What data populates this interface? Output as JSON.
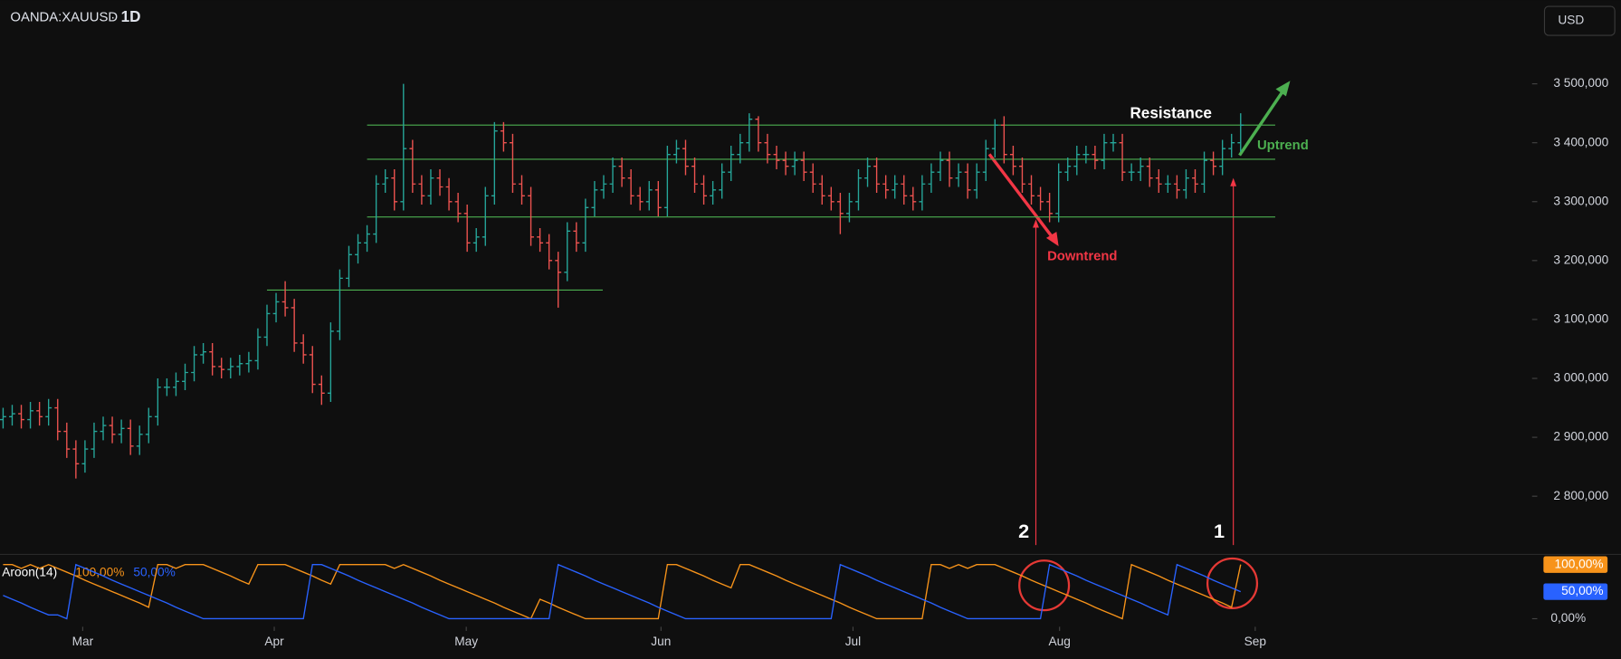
{
  "chart_data": [
    {
      "type": "ohlc",
      "symbol": "OANDA:XAUUSD",
      "interval": "1D",
      "currency": "USD",
      "up_color": "#26a69a",
      "down_color": "#ef5350",
      "grid": false,
      "xlim": [
        -0.34,
        167.8
      ],
      "xticks": [
        {
          "value": 8.75,
          "label": "Mar"
        },
        {
          "value": 29.8,
          "label": "Apr"
        },
        {
          "value": 50.9,
          "label": "May"
        },
        {
          "value": 72.3,
          "label": "Jun"
        },
        {
          "value": 93.4,
          "label": "Jul"
        },
        {
          "value": 116.1,
          "label": "Aug"
        },
        {
          "value": 137.6,
          "label": "Sep"
        }
      ],
      "ylim": [
        2703,
        3642
      ],
      "yticks": [
        {
          "value": 2800,
          "label": "2 800,000"
        },
        {
          "value": 2900,
          "label": "2 900,000"
        },
        {
          "value": 3000,
          "label": "3 000,000"
        },
        {
          "value": 3100,
          "label": "3 100,000"
        },
        {
          "value": 3200,
          "label": "3 200,000"
        },
        {
          "value": 3300,
          "label": "3 300,000"
        },
        {
          "value": 3400,
          "label": "3 400,000"
        },
        {
          "value": 3500,
          "label": "3 500,000"
        }
      ],
      "open": [
        2930,
        2935,
        2940,
        2930,
        2945,
        2935,
        2950,
        2910,
        2880,
        2855,
        2880,
        2910,
        2920,
        2905,
        2915,
        2885,
        2905,
        2935,
        2985,
        2985,
        2995,
        3010,
        3040,
        3045,
        3020,
        3015,
        3020,
        3025,
        3030,
        3070,
        3110,
        3130,
        3120,
        3060,
        3040,
        2990,
        2975,
        3080,
        3170,
        3210,
        3230,
        3245,
        3330,
        3340,
        3300,
        3390,
        3330,
        3310,
        3340,
        3325,
        3300,
        3280,
        3230,
        3240,
        3310,
        3420,
        3400,
        3330,
        3310,
        3240,
        3230,
        3200,
        3180,
        3250,
        3230,
        3290,
        3320,
        3330,
        3360,
        3340,
        3310,
        3300,
        3320,
        3290,
        3380,
        3390,
        3360,
        3330,
        3310,
        3320,
        3350,
        3380,
        3400,
        3440,
        3400,
        3380,
        3370,
        3360,
        3370,
        3350,
        3330,
        3310,
        3300,
        3280,
        3300,
        3340,
        3360,
        3330,
        3320,
        3330,
        3310,
        3300,
        3330,
        3350,
        3370,
        3340,
        3350,
        3320,
        3350,
        3390,
        3430,
        3380,
        3360,
        3330,
        3310,
        3300,
        3280,
        3350,
        3360,
        3380,
        3380,
        3370,
        3400,
        3400,
        3350,
        3350,
        3360,
        3340,
        3330,
        3330,
        3320,
        3340,
        3330,
        3370,
        3360,
        3390,
        3400
      ],
      "high": [
        2950,
        2955,
        2955,
        2960,
        2960,
        2965,
        2965,
        2925,
        2895,
        2895,
        2925,
        2935,
        2935,
        2930,
        2930,
        2920,
        2950,
        3000,
        3000,
        3010,
        3025,
        3055,
        3060,
        3060,
        3035,
        3035,
        3040,
        3045,
        3085,
        3125,
        3145,
        3165,
        3135,
        3075,
        3055,
        3005,
        3095,
        3185,
        3225,
        3245,
        3260,
        3345,
        3355,
        3355,
        3500,
        3405,
        3345,
        3355,
        3355,
        3340,
        3315,
        3295,
        3255,
        3325,
        3435,
        3435,
        3415,
        3345,
        3325,
        3255,
        3245,
        3215,
        3265,
        3265,
        3305,
        3335,
        3345,
        3375,
        3375,
        3355,
        3325,
        3335,
        3335,
        3395,
        3405,
        3405,
        3375,
        3345,
        3335,
        3365,
        3395,
        3415,
        3450,
        3445,
        3415,
        3395,
        3385,
        3385,
        3385,
        3365,
        3345,
        3325,
        3315,
        3315,
        3355,
        3375,
        3375,
        3345,
        3345,
        3345,
        3325,
        3345,
        3365,
        3385,
        3385,
        3365,
        3365,
        3365,
        3405,
        3440,
        3445,
        3395,
        3375,
        3345,
        3325,
        3315,
        3365,
        3375,
        3395,
        3395,
        3395,
        3415,
        3415,
        3415,
        3365,
        3375,
        3375,
        3355,
        3345,
        3345,
        3355,
        3355,
        3385,
        3385,
        3405,
        3415,
        3450
      ],
      "low": [
        2915,
        2920,
        2915,
        2915,
        2920,
        2920,
        2895,
        2865,
        2830,
        2840,
        2865,
        2895,
        2890,
        2890,
        2870,
        2870,
        2890,
        2920,
        2970,
        2970,
        2980,
        2995,
        3025,
        3005,
        3000,
        3000,
        3005,
        3010,
        3015,
        3055,
        3095,
        3105,
        3045,
        3025,
        2975,
        2955,
        2960,
        3065,
        3155,
        3195,
        3215,
        3230,
        3315,
        3285,
        3285,
        3315,
        3295,
        3295,
        3310,
        3285,
        3265,
        3215,
        3215,
        3225,
        3295,
        3385,
        3315,
        3295,
        3225,
        3215,
        3185,
        3120,
        3165,
        3215,
        3215,
        3275,
        3305,
        3315,
        3325,
        3295,
        3285,
        3285,
        3275,
        3275,
        3365,
        3345,
        3315,
        3295,
        3295,
        3305,
        3335,
        3365,
        3385,
        3385,
        3365,
        3355,
        3345,
        3345,
        3335,
        3315,
        3295,
        3285,
        3245,
        3265,
        3285,
        3325,
        3315,
        3305,
        3305,
        3295,
        3285,
        3285,
        3315,
        3335,
        3325,
        3325,
        3305,
        3305,
        3335,
        3375,
        3365,
        3345,
        3315,
        3295,
        3285,
        3265,
        3265,
        3335,
        3345,
        3365,
        3355,
        3355,
        3385,
        3335,
        3335,
        3335,
        3325,
        3315,
        3315,
        3305,
        3305,
        3315,
        3315,
        3345,
        3345,
        3375,
        3385
      ],
      "close": [
        2935,
        2940,
        2930,
        2945,
        2935,
        2950,
        2910,
        2880,
        2855,
        2880,
        2910,
        2920,
        2905,
        2915,
        2885,
        2905,
        2935,
        2985,
        2985,
        2995,
        3010,
        3040,
        3045,
        3020,
        3015,
        3020,
        3025,
        3030,
        3070,
        3110,
        3130,
        3120,
        3060,
        3040,
        2990,
        2975,
        3080,
        3170,
        3210,
        3230,
        3245,
        3330,
        3340,
        3300,
        3390,
        3330,
        3310,
        3340,
        3325,
        3300,
        3280,
        3230,
        3240,
        3310,
        3420,
        3400,
        3330,
        3310,
        3240,
        3230,
        3200,
        3180,
        3250,
        3230,
        3290,
        3320,
        3330,
        3360,
        3340,
        3310,
        3300,
        3320,
        3290,
        3380,
        3390,
        3360,
        3330,
        3310,
        3320,
        3350,
        3380,
        3400,
        3440,
        3400,
        3380,
        3370,
        3360,
        3370,
        3350,
        3330,
        3310,
        3300,
        3280,
        3300,
        3340,
        3360,
        3330,
        3320,
        3330,
        3310,
        3300,
        3330,
        3350,
        3370,
        3340,
        3350,
        3320,
        3350,
        3390,
        3430,
        3380,
        3360,
        3330,
        3310,
        3300,
        3280,
        3350,
        3360,
        3380,
        3380,
        3370,
        3400,
        3400,
        3350,
        3350,
        3360,
        3340,
        3330,
        3330,
        3320,
        3340,
        3330,
        3370,
        3360,
        3390,
        3400,
        3430
      ],
      "levels": [
        {
          "value": 3430,
          "from": 40,
          "to": 139.8
        },
        {
          "value": 3372,
          "from": 40,
          "to": 139.8
        },
        {
          "value": 3274,
          "from": 40,
          "to": 139.8
        },
        {
          "value": 3150,
          "from": 29,
          "to": 65.9
        }
      ],
      "level_color": "#4caf50",
      "annotations": [
        "Resistance",
        "Uptrend",
        "Downtrend",
        "2",
        "1"
      ]
    },
    {
      "type": "line",
      "title": "Aroon(14)",
      "xlim": [
        -0.34,
        167.8
      ],
      "ylim": [
        -13,
        115
      ],
      "yticks": [
        {
          "value": 0,
          "label": "0,00%"
        }
      ],
      "series": [
        {
          "color": "#f7931a",
          "last_label": "100,00%",
          "values": [
            100,
            100,
            93,
            100,
            93,
            100,
            93,
            86,
            79,
            71,
            64,
            57,
            50,
            43,
            36,
            29,
            21,
            100,
            100,
            93,
            100,
            100,
            100,
            93,
            86,
            79,
            71,
            64,
            100,
            100,
            100,
            100,
            93,
            86,
            79,
            71,
            64,
            100,
            100,
            100,
            100,
            100,
            100,
            93,
            100,
            93,
            86,
            79,
            71,
            64,
            57,
            50,
            43,
            36,
            29,
            21,
            14,
            7,
            0,
            36,
            29,
            21,
            14,
            7,
            0,
            0,
            0,
            0,
            0,
            0,
            0,
            0,
            0,
            100,
            100,
            93,
            86,
            79,
            71,
            64,
            57,
            100,
            100,
            93,
            86,
            79,
            71,
            64,
            57,
            50,
            43,
            36,
            29,
            21,
            14,
            7,
            0,
            0,
            0,
            0,
            0,
            0,
            100,
            100,
            93,
            100,
            93,
            100,
            100,
            100,
            93,
            86,
            79,
            71,
            64,
            57,
            50,
            43,
            36,
            29,
            21,
            14,
            7,
            0,
            100,
            93,
            86,
            79,
            71,
            64,
            57,
            50,
            43,
            36,
            29,
            21,
            100
          ]
        },
        {
          "color": "#2962ff",
          "last_label": "50,00%",
          "values": [
            43,
            36,
            29,
            21,
            14,
            7,
            7,
            0,
            100,
            93,
            86,
            79,
            71,
            64,
            57,
            50,
            43,
            36,
            29,
            21,
            14,
            7,
            0,
            0,
            0,
            0,
            0,
            0,
            0,
            0,
            0,
            0,
            0,
            0,
            100,
            100,
            93,
            86,
            79,
            71,
            64,
            57,
            50,
            43,
            36,
            29,
            21,
            14,
            7,
            0,
            0,
            0,
            0,
            0,
            0,
            0,
            0,
            0,
            0,
            0,
            0,
            100,
            93,
            86,
            79,
            71,
            64,
            57,
            50,
            43,
            36,
            29,
            21,
            14,
            7,
            0,
            0,
            0,
            0,
            0,
            0,
            0,
            0,
            0,
            0,
            0,
            0,
            0,
            0,
            0,
            0,
            0,
            100,
            93,
            86,
            79,
            71,
            64,
            57,
            50,
            43,
            36,
            29,
            21,
            14,
            7,
            0,
            0,
            0,
            0,
            0,
            0,
            0,
            0,
            0,
            100,
            93,
            86,
            79,
            71,
            64,
            57,
            50,
            43,
            36,
            29,
            21,
            14,
            7,
            100,
            93,
            86,
            79,
            71,
            64,
            57,
            50
          ]
        }
      ]
    }
  ]
}
